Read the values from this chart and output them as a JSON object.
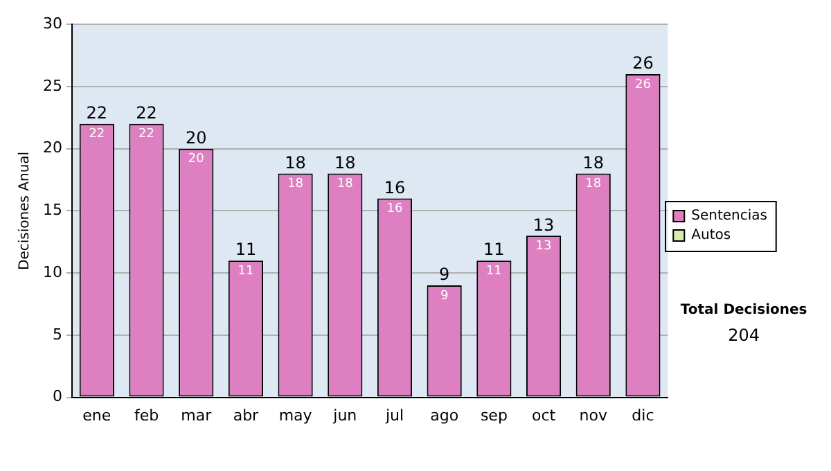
{
  "chart_data": {
    "type": "bar",
    "stacked": true,
    "ylabel": "Decisiones Anual",
    "categories": [
      "ene",
      "feb",
      "mar",
      "abr",
      "may",
      "jun",
      "jul",
      "ago",
      "sep",
      "oct",
      "nov",
      "dic"
    ],
    "series": [
      {
        "name": "Sentencias",
        "color": "#dd7fc0",
        "values": [
          22,
          22,
          20,
          11,
          18,
          18,
          16,
          9,
          11,
          13,
          18,
          26
        ],
        "value_labels": [
          "22",
          "22",
          "20",
          "11",
          "18",
          "18",
          "16",
          "9",
          "11",
          "13",
          "18",
          "26"
        ]
      },
      {
        "name": "Autos",
        "color": "#d6ecaa",
        "values": [
          0,
          0,
          0,
          0,
          0,
          0,
          0,
          0,
          0,
          0,
          0,
          0
        ]
      }
    ],
    "totals": [
      "22",
      "22",
      "20",
      "11",
      "18",
      "18",
      "16",
      "9",
      "11",
      "13",
      "18",
      "26"
    ],
    "ylim": [
      0,
      30
    ],
    "yticks": [
      0,
      5,
      10,
      15,
      20,
      25,
      30
    ],
    "grid": "y",
    "legend": "right",
    "annotations": [
      "Total Decisiones",
      "204"
    ]
  }
}
